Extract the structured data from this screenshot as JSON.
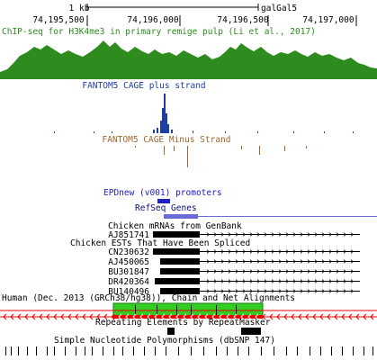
{
  "ruler": {
    "scale_label": "1 kb",
    "assembly": "galGal5",
    "ticks": [
      "74,195,500",
      "74,196,000",
      "74,196,500",
      "74,197,000"
    ]
  },
  "tracks": {
    "chipseq": "ChIP-seq for H3K4me3 in primary remige pulp (Li et al., 2017)",
    "cage_plus": "FANTOM5 CAGE plus strand",
    "cage_minus": "FANTOM5 CAGE Minus Strand",
    "epd": "EPDnew (v001) promoters",
    "refseq": "RefSeq Genes",
    "mrna": "Chicken mRNAs from GenBank",
    "est": "Chicken ESTs That Have Been Spliced",
    "chain": "Human (Dec. 2013 (GRCh38/hg38)), Chain and Net Alignments",
    "repeat": "Repeating Elements by RepeatMasker",
    "snp": "Simple Nucleotide Polymorphisms (dbSNP 147)"
  },
  "items": {
    "mrna": [
      "AJ851741"
    ],
    "est": [
      "CN230632",
      "AJ450065",
      "BU301847",
      "DR420364",
      "BU140496"
    ]
  },
  "colors": {
    "chipseq": "#2e8b1e",
    "cage_plus": "#1f3f9e",
    "cage_minus": "#a0662c",
    "epd": "#2020c0",
    "refseq": "#0c0c78",
    "feature": "#000000",
    "chain_green": "#33cc22",
    "chain_red": "#ee0000",
    "text": "#000000"
  }
}
